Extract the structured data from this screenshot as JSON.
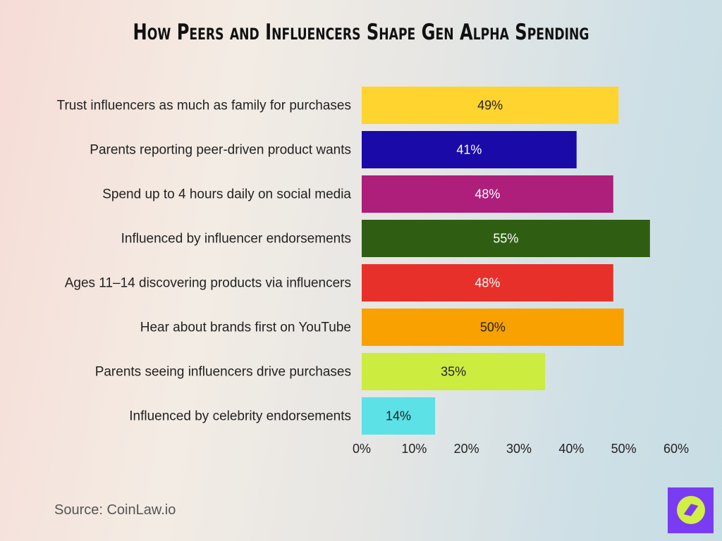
{
  "chart_data": {
    "type": "bar",
    "orientation": "horizontal",
    "title": "How Peers and Influencers Shape Gen Alpha Spending",
    "categories": [
      "Trust influencers as much as family for purchases",
      "Parents reporting peer-driven product wants",
      "Spend up to 4 hours daily on social media",
      "Influenced by influencer endorsements",
      "Ages 11–14 discovering products via influencers",
      "Hear about brands first on YouTube",
      "Parents seeing influencers drive purchases",
      "Influenced by celebrity endorsements"
    ],
    "values": [
      49,
      41,
      48,
      55,
      48,
      50,
      35,
      14
    ],
    "data_labels": [
      "49%",
      "41%",
      "48%",
      "55%",
      "48%",
      "50%",
      "35%",
      "14%"
    ],
    "colors": [
      "#FFD42F",
      "#1A0AA8",
      "#AD1F7A",
      "#2F5E12",
      "#E8302A",
      "#F9A100",
      "#CDEC40",
      "#5CE1E6"
    ],
    "label_colors": [
      "#222222",
      "#ffffff",
      "#ffffff",
      "#ffffff",
      "#ffffff",
      "#222222",
      "#222222",
      "#222222"
    ],
    "xlim": [
      0,
      60
    ],
    "xticks": [
      "0%",
      "10%",
      "20%",
      "30%",
      "40%",
      "50%",
      "60%"
    ],
    "grid": false,
    "legend": "none"
  },
  "source": "Source: CoinLaw.io",
  "logo_icon": "compass-icon"
}
